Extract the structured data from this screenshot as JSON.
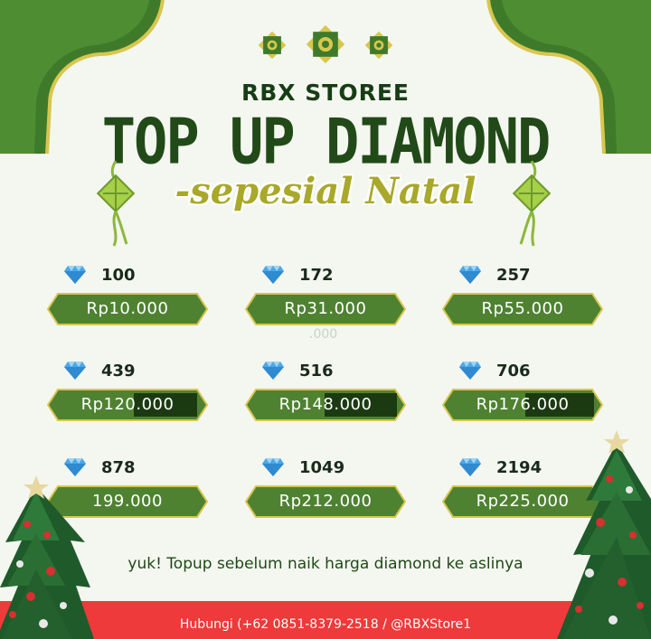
{
  "brand": "RBX STOREE",
  "title": "TOP UP DIAMOND",
  "subtitle": "-sepesial Natal",
  "packages": [
    {
      "amount": "100",
      "price": "Rp10.000"
    },
    {
      "amount": "172",
      "price": "Rp31.000"
    },
    {
      "amount": "257",
      "price": "Rp55.000"
    },
    {
      "amount": "439",
      "price": "Rp120.000"
    },
    {
      "amount": "516",
      "price": "Rp148.000"
    },
    {
      "amount": "706",
      "price": "Rp176.000"
    },
    {
      "amount": "878",
      "price": "199.000"
    },
    {
      "amount": "1049",
      "price": "Rp212.000"
    },
    {
      "amount": "2194",
      "price": "Rp225.000"
    }
  ],
  "stray_text": ".000",
  "tagline": "yuk! Topup sebelum naik harga diamond ke aslinya",
  "footer": "Hubungi (+62 0851-8379-2518 / @RBXStore1",
  "colors": {
    "dark_green": "#214a18",
    "button_green": "#4e8231",
    "gold": "#d8c64e",
    "red": "#ee3a3a",
    "diamond": "#4aa8e8"
  },
  "icons": [
    "diamond-icon",
    "ornament-icon",
    "ketupat-icon",
    "christmas-tree-icon",
    "star-icon"
  ]
}
